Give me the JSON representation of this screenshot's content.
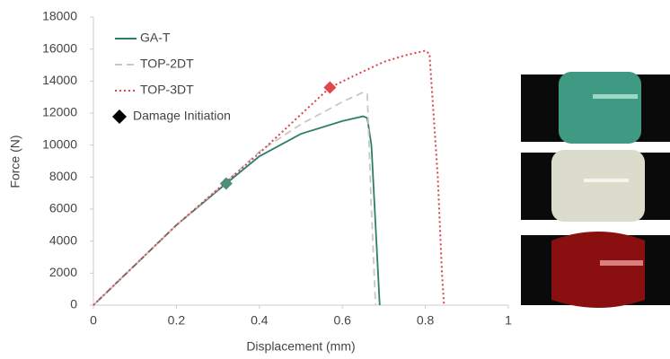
{
  "chart_data": {
    "type": "line",
    "xlabel": "Displacement (mm)",
    "ylabel": "Force (N)",
    "xlim": [
      0,
      1
    ],
    "xticks": [
      0,
      0.2,
      0.4,
      0.6,
      0.8,
      1
    ],
    "ylim": [
      0,
      18000
    ],
    "yticks": [
      0,
      2000,
      4000,
      6000,
      8000,
      10000,
      12000,
      14000,
      16000,
      18000
    ],
    "grid": false,
    "legend": "upper-left",
    "series": [
      {
        "name": "GA-T",
        "color": "#2e7d6b",
        "style": "solid",
        "x": [
          0,
          0.1,
          0.2,
          0.32,
          0.4,
          0.5,
          0.6,
          0.65,
          0.66,
          0.67,
          0.68,
          0.69
        ],
        "values": [
          0,
          2500,
          5000,
          7600,
          9300,
          10700,
          11500,
          11800,
          11700,
          10000,
          5000,
          0
        ]
      },
      {
        "name": "TOP-2DT",
        "color": "#c8c8c8",
        "style": "dashed",
        "x": [
          0,
          0.1,
          0.2,
          0.32,
          0.4,
          0.5,
          0.6,
          0.65,
          0.66,
          0.67,
          0.68
        ],
        "values": [
          0,
          2500,
          5000,
          7700,
          9600,
          11300,
          12700,
          13300,
          13200,
          6000,
          0
        ]
      },
      {
        "name": "TOP-3DT",
        "color": "#d9434a",
        "style": "dotted",
        "x": [
          0,
          0.2,
          0.4,
          0.57,
          0.65,
          0.7,
          0.75,
          0.8,
          0.81,
          0.83,
          0.84,
          0.845
        ],
        "values": [
          0,
          5000,
          9500,
          13600,
          14600,
          15200,
          15600,
          15900,
          15700,
          8000,
          2000,
          0
        ]
      },
      {
        "name": "Damage Initiation",
        "color": "#000000",
        "style": "marker",
        "x": [
          0.32,
          0.57
        ],
        "values": [
          7600,
          13600
        ],
        "point_colors": [
          "#4a8f7a",
          "#e0474c"
        ]
      }
    ]
  }
}
